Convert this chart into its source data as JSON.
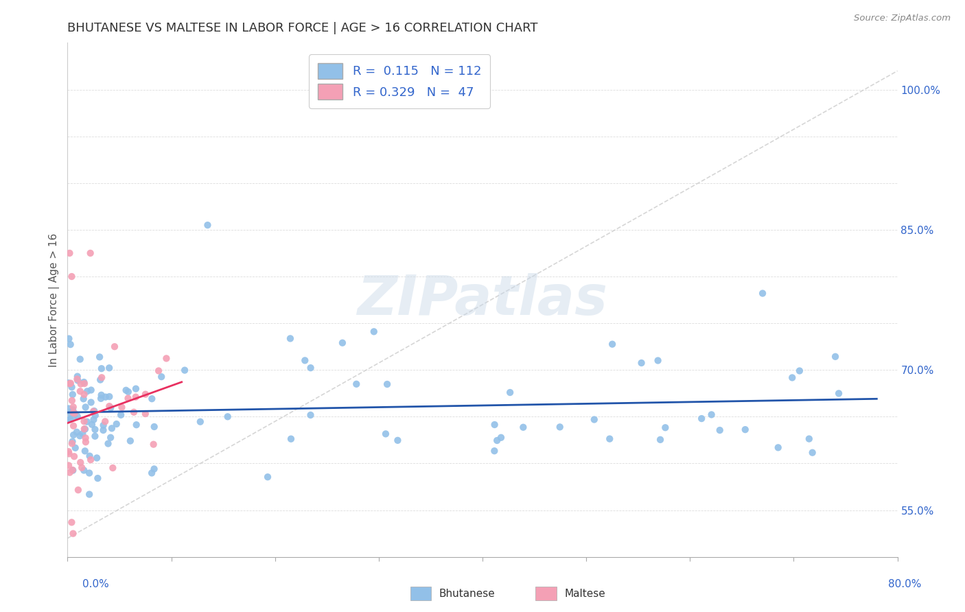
{
  "title": "BHUTANESE VS MALTESE IN LABOR FORCE | AGE > 16 CORRELATION CHART",
  "source": "Source: ZipAtlas.com",
  "ylabel": "In Labor Force | Age > 16",
  "xlim": [
    0.0,
    0.8
  ],
  "ylim": [
    0.5,
    1.05
  ],
  "bhutanese_color": "#92c0e8",
  "maltese_color": "#f4a0b5",
  "bhutanese_line_color": "#2255aa",
  "maltese_line_color": "#e83060",
  "reference_line_color": "#cccccc",
  "R_bhutanese": 0.115,
  "N_bhutanese": 112,
  "R_maltese": 0.329,
  "N_maltese": 47,
  "watermark": "ZIPatlas",
  "ytick_positions": [
    0.55,
    0.6,
    0.65,
    0.7,
    0.75,
    0.8,
    0.85,
    0.9,
    0.95,
    1.0
  ],
  "ytick_labels_shown": [
    "55.0%",
    "",
    "",
    "70.0%",
    "",
    "",
    "85.0%",
    "",
    "",
    "100.0%"
  ]
}
